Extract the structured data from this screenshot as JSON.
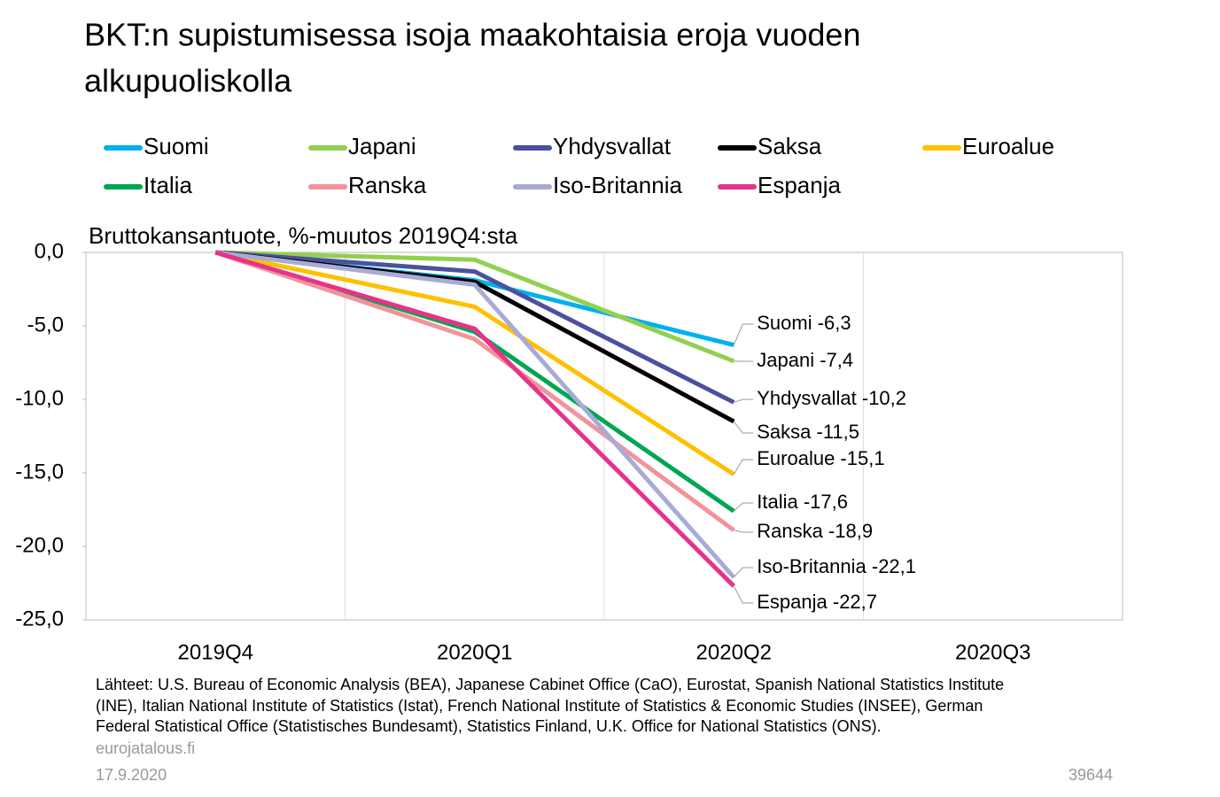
{
  "chart_data": {
    "type": "line",
    "title": "BKT:n supistumisessa isoja maakohtaisia eroja vuoden alkupuoliskolla",
    "y_label": "Bruttokansantuote, %-muutos 2019Q4:sta",
    "categories": [
      "2019Q4",
      "2020Q1",
      "2020Q2",
      "2020Q3"
    ],
    "ylim": [
      -25,
      0
    ],
    "yticks": [
      {
        "value": 0,
        "label": "0,0"
      },
      {
        "value": -5,
        "label": "-5,0"
      },
      {
        "value": -10,
        "label": "-10,0"
      },
      {
        "value": -15,
        "label": "-15,0"
      },
      {
        "value": -20,
        "label": "-20,0"
      },
      {
        "value": -25,
        "label": "-25,0"
      }
    ],
    "series": [
      {
        "name": "Suomi",
        "color": "#00b0f0",
        "values": [
          0,
          -1.9,
          -6.3,
          null
        ],
        "value_labels": [
          null,
          null,
          "Suomi -6,3",
          null
        ]
      },
      {
        "name": "Japani",
        "color": "#92d050",
        "values": [
          0,
          -0.5,
          -7.4,
          null
        ],
        "value_labels": [
          null,
          null,
          "Japani -7,4",
          null
        ]
      },
      {
        "name": "Yhdysvallat",
        "color": "#4b509e",
        "values": [
          0,
          -1.3,
          -10.2,
          null
        ],
        "value_labels": [
          null,
          null,
          "Yhdysvallat -10,2",
          null
        ]
      },
      {
        "name": "Saksa",
        "color": "#000000",
        "values": [
          0,
          -2.0,
          -11.5,
          null
        ],
        "value_labels": [
          null,
          null,
          "Saksa -11,5",
          null
        ]
      },
      {
        "name": "Euroalue",
        "color": "#ffc000",
        "values": [
          0,
          -3.7,
          -15.1,
          null
        ],
        "value_labels": [
          null,
          null,
          "Euroalue -15,1",
          null
        ]
      },
      {
        "name": "Italia",
        "color": "#00a651",
        "values": [
          0,
          -5.4,
          -17.6,
          null
        ],
        "value_labels": [
          null,
          null,
          "Italia -17,6",
          null
        ]
      },
      {
        "name": "Ranska",
        "color": "#f19499",
        "values": [
          0,
          -5.9,
          -18.9,
          null
        ],
        "value_labels": [
          null,
          null,
          "Ranska -18,9",
          null
        ]
      },
      {
        "name": "Iso-Britannia",
        "color": "#a9abd6",
        "values": [
          0,
          -2.2,
          -22.1,
          null
        ],
        "value_labels": [
          null,
          null,
          "Iso-Britannia -22,1",
          null
        ]
      },
      {
        "name": "Espanja",
        "color": "#e6338a",
        "values": [
          0,
          -5.2,
          -22.7,
          null
        ],
        "value_labels": [
          null,
          null,
          "Espanja -22,7",
          null
        ]
      }
    ],
    "source": [
      "Lähteet: U.S. Bureau of Economic Analysis (BEA), Japanese Cabinet Office (CaO), Eurostat, Spanish National Statistics Institute",
      "(INE), Italian National Institute of Statistics (Istat), French National Institute of Statistics & Economic Studies (INSEE), German",
      "Federal Statistical Office (Statistisches Bundesamt), Statistics Finland, U.K. Office for National Statistics (ONS)."
    ],
    "site": "eurojatalous.fi",
    "date": "17.9.2020",
    "id": "39644"
  }
}
